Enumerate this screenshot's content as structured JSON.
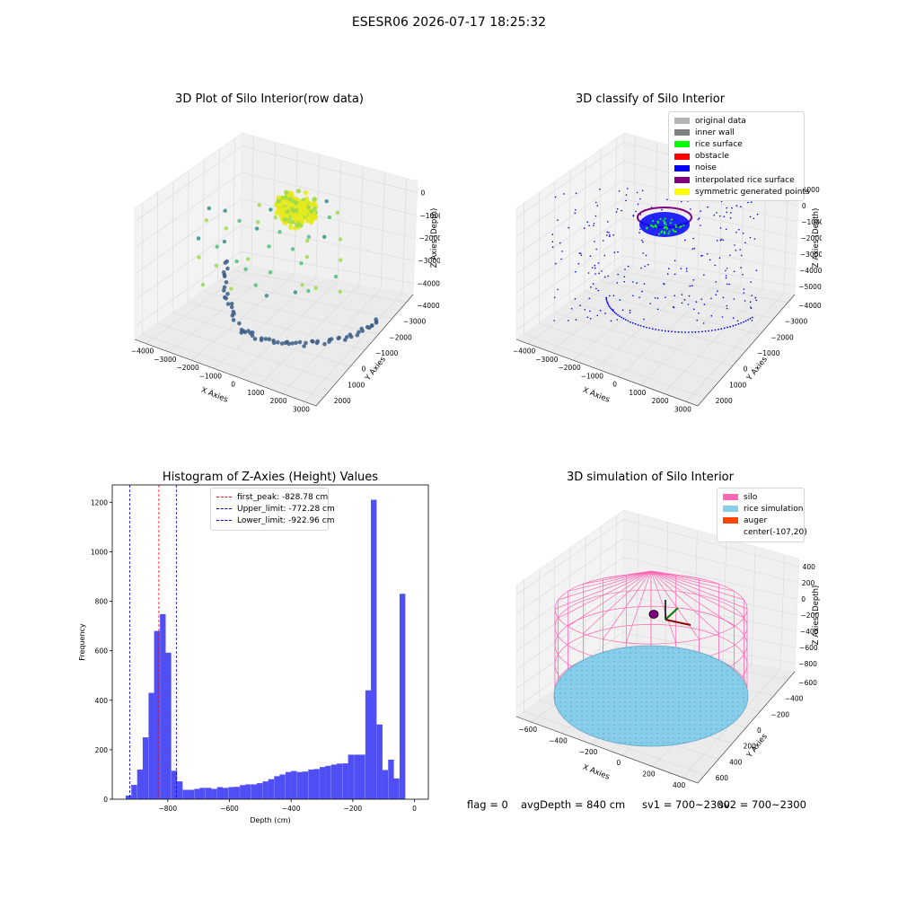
{
  "figure": {
    "suptitle": "ESESR06 2026-07-17 18:25:32"
  },
  "colors": {
    "rice_cloud": [
      "#3b5d86",
      "#2f8f8a",
      "#4fc07a",
      "#a0d94a",
      "#e6ea1c"
    ],
    "original_data": "#b3b3b3",
    "inner_wall": "#808080",
    "rice_surface": "#00ff00",
    "obstacle": "#ff0000",
    "noise": "#0000ff",
    "interpolated": "#800080",
    "symmetric": "#ffff00",
    "hist_bar": "#4f4ff5",
    "first_peak": "#ff0000",
    "limit": "#0000cc",
    "silo": "#ff69b4",
    "rice_sim": "#87ceeb",
    "auger": "#ff4500"
  },
  "chart_data": [
    {
      "type": "scatter3d",
      "title": "3D Plot of Silo Interior(row data)",
      "xlabel": "X Axies",
      "ylabel": "Y Axies",
      "zlabel": "Z Axies (Depth)",
      "xticks": [
        -4000,
        -3000,
        -2000,
        -1000,
        0,
        1000,
        2000,
        3000
      ],
      "yticks": [
        -4000,
        -3000,
        -2000,
        -1000,
        0,
        1000,
        2000
      ],
      "zticks": [
        0,
        -1000,
        -2000,
        -3000,
        -4000
      ],
      "xlim": [
        -4500,
        3500
      ],
      "ylim": [
        -4500,
        2500
      ],
      "zlim": [
        -4700,
        0
      ]
    },
    {
      "type": "scatter3d",
      "title": "3D classify of Silo Interior",
      "xlabel": "X Axies",
      "ylabel": "Y Axies",
      "zlabel": "Z Axies (Depth)",
      "xticks": [
        -4000,
        -3000,
        -2000,
        -1000,
        0,
        1000,
        2000,
        3000
      ],
      "yticks": [
        -4000,
        -3000,
        -2000,
        -1000,
        0,
        1000,
        2000
      ],
      "zticks": [
        1000,
        0,
        -1000,
        -2000,
        -3000,
        -4000,
        -5000
      ],
      "xlim": [
        -4500,
        3500
      ],
      "ylim": [
        -4500,
        2500
      ],
      "zlim": [
        -5600,
        1200
      ],
      "legend": [
        "original data",
        "inner wall",
        "rice surface",
        "obstacle",
        "noise",
        "interpolated rice surface",
        "symmetric generated points"
      ]
    },
    {
      "type": "bar",
      "title": "Histogram of Z-Axies (Height) Values",
      "xlabel": "Depth (cm)",
      "ylabel": "Frequency",
      "xlim": [
        -980,
        45
      ],
      "ylim": [
        0,
        1270
      ],
      "xticks": [
        -800,
        -600,
        -400,
        -200,
        0
      ],
      "yticks": [
        0,
        200,
        400,
        600,
        800,
        1000,
        1200
      ],
      "bin_width": 18.5,
      "bins": [
        {
          "x": -927,
          "count": 15
        },
        {
          "x": -909,
          "count": 58
        },
        {
          "x": -890,
          "count": 120
        },
        {
          "x": -872,
          "count": 250
        },
        {
          "x": -853,
          "count": 430
        },
        {
          "x": -835,
          "count": 680
        },
        {
          "x": -816,
          "count": 748
        },
        {
          "x": -798,
          "count": 592
        },
        {
          "x": -779,
          "count": 115
        },
        {
          "x": -761,
          "count": 72
        },
        {
          "x": -742,
          "count": 38
        },
        {
          "x": -724,
          "count": 38
        },
        {
          "x": -705,
          "count": 42
        },
        {
          "x": -687,
          "count": 46
        },
        {
          "x": -668,
          "count": 46
        },
        {
          "x": -650,
          "count": 42
        },
        {
          "x": -631,
          "count": 49
        },
        {
          "x": -613,
          "count": 46
        },
        {
          "x": -594,
          "count": 49
        },
        {
          "x": -576,
          "count": 50
        },
        {
          "x": -557,
          "count": 57
        },
        {
          "x": -539,
          "count": 60
        },
        {
          "x": -520,
          "count": 60
        },
        {
          "x": -502,
          "count": 65
        },
        {
          "x": -483,
          "count": 72
        },
        {
          "x": -465,
          "count": 81
        },
        {
          "x": -446,
          "count": 93
        },
        {
          "x": -428,
          "count": 100
        },
        {
          "x": -409,
          "count": 110
        },
        {
          "x": -391,
          "count": 114
        },
        {
          "x": -372,
          "count": 110
        },
        {
          "x": -354,
          "count": 112
        },
        {
          "x": -335,
          "count": 120
        },
        {
          "x": -317,
          "count": 122
        },
        {
          "x": -298,
          "count": 130
        },
        {
          "x": -280,
          "count": 135
        },
        {
          "x": -261,
          "count": 140
        },
        {
          "x": -243,
          "count": 144
        },
        {
          "x": -224,
          "count": 145
        },
        {
          "x": -206,
          "count": 180
        },
        {
          "x": -187,
          "count": 180
        },
        {
          "x": -169,
          "count": 180
        },
        {
          "x": -150,
          "count": 440
        },
        {
          "x": -132,
          "count": 1210
        },
        {
          "x": -113,
          "count": 302
        },
        {
          "x": -95,
          "count": 118
        },
        {
          "x": -76,
          "count": 160
        },
        {
          "x": -58,
          "count": 84
        },
        {
          "x": -39,
          "count": 830
        }
      ],
      "first_peak": -828.78,
      "upper_limit": -772.28,
      "lower_limit": -922.96,
      "legend": [
        "first_peak: -828.78 cm",
        "Upper_limit: -772.28 cm",
        "Lower_limit: -922.96 cm"
      ]
    },
    {
      "type": "surface3d",
      "title": "3D simulation of Silo Interior",
      "xlabel": "X Axies",
      "ylabel": "Y Axies",
      "zlabel": "Z Axies (Depth)",
      "xticks": [
        -600,
        -400,
        -200,
        0,
        200,
        400
      ],
      "yticks": [
        -600,
        -400,
        -200,
        0,
        200,
        400,
        600
      ],
      "zticks": [
        400,
        200,
        0,
        -200,
        -400,
        -600,
        -800
      ],
      "legend": [
        "silo",
        "rice simulation",
        "auger",
        "center(-107,20)"
      ]
    }
  ],
  "status": {
    "flag": "flag = 0",
    "avg_depth": "avgDepth = 840 cm",
    "sv1": "sv1 = 700~2300",
    "sv2": "sv2 = 700~2300"
  }
}
